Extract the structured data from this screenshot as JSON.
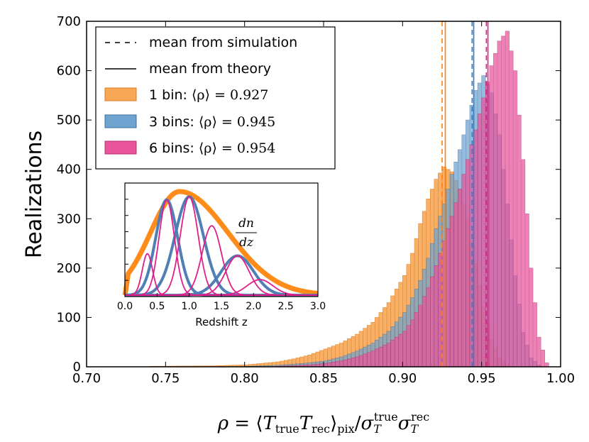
{
  "chart_data": {
    "type": "bar",
    "xlabel": "ρ = ⟨T_true T_rec⟩_pix / σ_T^true σ_T^rec",
    "ylabel": "Realizations",
    "xlim": [
      0.7,
      1.0
    ],
    "ylim": [
      0,
      700
    ],
    "xticks": [
      "0.70",
      "0.75",
      "0.80",
      "0.85",
      "0.90",
      "0.95",
      "1.00"
    ],
    "yticks": [
      "0",
      "100",
      "200",
      "300",
      "400",
      "500",
      "600",
      "700"
    ],
    "legend": {
      "position": "top-left",
      "dashed_label": "mean from simulation",
      "solid_label": "mean from theory",
      "entries": [
        {
          "prefix": "1 bin: ",
          "math": "⟨ρ⟩ = 0.927",
          "color": "#f7a856"
        },
        {
          "prefix": "3 bins: ",
          "math": "⟨ρ⟩ = 0.945",
          "color": "#6fa3d0"
        },
        {
          "prefix": "6 bins: ",
          "math": "⟨ρ⟩ = 0.954",
          "color": "#e8539b"
        }
      ]
    },
    "series": [
      {
        "name": "1 bin",
        "fill": "#f7a856",
        "edge": "#e07b20",
        "mean_sim": 0.925,
        "mean_theory": 0.927,
        "line_color": "#ff7f0e",
        "bins": [
          [
            0.74,
            1
          ],
          [
            0.78,
            2
          ],
          [
            0.8,
            4
          ],
          [
            0.81,
            7
          ],
          [
            0.82,
            10
          ],
          [
            0.83,
            16
          ],
          [
            0.84,
            24
          ],
          [
            0.85,
            36
          ],
          [
            0.86,
            48
          ],
          [
            0.87,
            66
          ],
          [
            0.88,
            90
          ],
          [
            0.89,
            130
          ],
          [
            0.9,
            185
          ],
          [
            0.905,
            230
          ],
          [
            0.91,
            290
          ],
          [
            0.915,
            340
          ],
          [
            0.92,
            380
          ],
          [
            0.925,
            405
          ],
          [
            0.93,
            395
          ],
          [
            0.935,
            360
          ],
          [
            0.94,
            300
          ],
          [
            0.945,
            210
          ],
          [
            0.95,
            120
          ],
          [
            0.955,
            55
          ],
          [
            0.96,
            18
          ],
          [
            0.965,
            5
          ]
        ]
      },
      {
        "name": "3 bins",
        "fill": "#6fa3d0",
        "edge": "#3f6fa0",
        "mean_sim": 0.944,
        "mean_theory": 0.945,
        "line_color": "#2b7bc8",
        "bins": [
          [
            0.8,
            1
          ],
          [
            0.82,
            3
          ],
          [
            0.84,
            8
          ],
          [
            0.85,
            12
          ],
          [
            0.86,
            20
          ],
          [
            0.87,
            32
          ],
          [
            0.88,
            48
          ],
          [
            0.89,
            72
          ],
          [
            0.9,
            110
          ],
          [
            0.905,
            140
          ],
          [
            0.91,
            175
          ],
          [
            0.915,
            220
          ],
          [
            0.92,
            280
          ],
          [
            0.925,
            330
          ],
          [
            0.93,
            390
          ],
          [
            0.935,
            440
          ],
          [
            0.94,
            500
          ],
          [
            0.945,
            560
          ],
          [
            0.95,
            590
          ],
          [
            0.955,
            555
          ],
          [
            0.96,
            470
          ],
          [
            0.965,
            330
          ],
          [
            0.97,
            185
          ],
          [
            0.975,
            70
          ],
          [
            0.98,
            18
          ],
          [
            0.985,
            4
          ]
        ]
      },
      {
        "name": "6 bins",
        "fill": "#e8539b",
        "edge": "#b8306f",
        "mean_sim": 0.953,
        "mean_theory": 0.954,
        "line_color": "#e0208a",
        "bins": [
          [
            0.82,
            1
          ],
          [
            0.84,
            4
          ],
          [
            0.85,
            7
          ],
          [
            0.86,
            12
          ],
          [
            0.87,
            20
          ],
          [
            0.88,
            32
          ],
          [
            0.89,
            48
          ],
          [
            0.9,
            72
          ],
          [
            0.905,
            95
          ],
          [
            0.91,
            125
          ],
          [
            0.915,
            160
          ],
          [
            0.92,
            205
          ],
          [
            0.925,
            255
          ],
          [
            0.93,
            305
          ],
          [
            0.935,
            360
          ],
          [
            0.94,
            420
          ],
          [
            0.945,
            480
          ],
          [
            0.95,
            545
          ],
          [
            0.955,
            610
          ],
          [
            0.96,
            660
          ],
          [
            0.965,
            680
          ],
          [
            0.97,
            600
          ],
          [
            0.975,
            420
          ],
          [
            0.98,
            200
          ],
          [
            0.985,
            60
          ],
          [
            0.99,
            8
          ]
        ]
      }
    ],
    "inset": {
      "fraction_label": [
        "dn",
        "dz"
      ],
      "xlabel": "Redshift z",
      "xlim": [
        0.0,
        3.0
      ],
      "xticks": [
        "0.0",
        "0.5",
        "1.0",
        "1.5",
        "2.0",
        "2.5",
        "3.0"
      ],
      "total": {
        "color": "#ff8c1a",
        "mu": 0.85,
        "sigma_left": 0.45,
        "sigma_right": 0.75,
        "amp": 1.0
      },
      "three_bins": {
        "color": "#4f7fb5",
        "components": [
          [
            0.65,
            0.17,
            0.92
          ],
          [
            1.0,
            0.22,
            0.95
          ],
          [
            1.75,
            0.25,
            0.38
          ]
        ]
      },
      "six_bins": {
        "color": "#e0208a",
        "components": [
          [
            0.35,
            0.08,
            0.4
          ],
          [
            0.65,
            0.12,
            0.92
          ],
          [
            1.0,
            0.14,
            0.95
          ],
          [
            1.35,
            0.15,
            0.67
          ],
          [
            1.75,
            0.18,
            0.38
          ],
          [
            2.1,
            0.2,
            0.15
          ]
        ]
      }
    }
  }
}
